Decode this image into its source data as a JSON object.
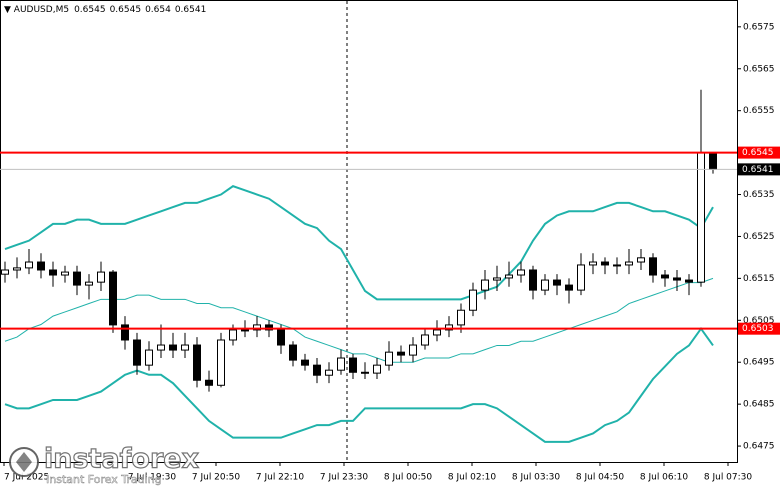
{
  "chart_data": {
    "type": "candlestick",
    "title": "AUDUSD,M5",
    "open": [
      0.6516,
      0.6517,
      0.65175,
      0.65189,
      0.6517,
      0.65158,
      0.65165,
      0.65134,
      0.65141,
      0.65165,
      0.65039,
      0.65003,
      0.64943,
      0.64979,
      0.64991,
      0.64979,
      0.64991,
      0.64907,
      0.64895,
      0.65003,
      0.65027,
      0.65027,
      0.65039,
      0.65027,
      0.64991,
      0.64955,
      0.64943,
      0.64919,
      0.64931,
      0.6496,
      0.64926,
      0.64924,
      0.64943,
      0.64974,
      0.64967,
      0.64991,
      0.65015,
      0.65027,
      0.65039,
      0.65074,
      0.65122,
      0.65146,
      0.65151,
      0.65158,
      0.6517,
      0.65122,
      0.65146,
      0.65134,
      0.65122,
      0.65182,
      0.65189,
      0.65182,
      0.65182,
      0.65189,
      0.65199,
      0.65158,
      0.65151,
      0.65146,
      0.65141,
      0.6545
    ],
    "high": [
      0.6519,
      0.652,
      0.6522,
      0.6521,
      0.6519,
      0.6518,
      0.6518,
      0.6516,
      0.6519,
      0.6517,
      0.6506,
      0.6502,
      0.65,
      0.6504,
      0.6502,
      0.6502,
      0.6501,
      0.6493,
      0.6502,
      0.6504,
      0.6505,
      0.6506,
      0.6505,
      0.6504,
      0.65,
      0.6497,
      0.6496,
      0.6495,
      0.6498,
      0.6497,
      0.6495,
      0.6496,
      0.65,
      0.6499,
      0.6501,
      0.6503,
      0.6505,
      0.6506,
      0.6509,
      0.6514,
      0.6517,
      0.6518,
      0.6519,
      0.6519,
      0.6518,
      0.6516,
      0.6516,
      0.6515,
      0.6521,
      0.6521,
      0.652,
      0.652,
      0.6522,
      0.6522,
      0.6521,
      0.6517,
      0.6517,
      0.6516,
      0.656,
      0.6545
    ],
    "low": [
      0.6514,
      0.6515,
      0.6516,
      0.6515,
      0.6513,
      0.6514,
      0.6511,
      0.651,
      0.6512,
      0.6502,
      0.6498,
      0.6492,
      0.6493,
      0.6496,
      0.6496,
      0.6496,
      0.6489,
      0.6488,
      0.6489,
      0.6499,
      0.6501,
      0.6501,
      0.6501,
      0.6497,
      0.6494,
      0.6493,
      0.649,
      0.649,
      0.6492,
      0.6491,
      0.6491,
      0.6491,
      0.6493,
      0.6495,
      0.6495,
      0.6498,
      0.65,
      0.6501,
      0.6502,
      0.6506,
      0.651,
      0.6512,
      0.6513,
      0.6514,
      0.651,
      0.6511,
      0.6511,
      0.6509,
      0.6511,
      0.6516,
      0.6516,
      0.6516,
      0.6516,
      0.6517,
      0.6514,
      0.6513,
      0.6512,
      0.6511,
      0.6513,
      0.654
    ],
    "close": [
      0.6517,
      0.65175,
      0.65189,
      0.6517,
      0.65158,
      0.65165,
      0.65134,
      0.65141,
      0.65165,
      0.65039,
      0.65003,
      0.64943,
      0.64979,
      0.64991,
      0.64979,
      0.64991,
      0.64907,
      0.64895,
      0.65003,
      0.65027,
      0.65027,
      0.65039,
      0.65027,
      0.64991,
      0.64955,
      0.64943,
      0.64919,
      0.64931,
      0.6496,
      0.64926,
      0.64924,
      0.64943,
      0.64974,
      0.64967,
      0.64991,
      0.65015,
      0.65027,
      0.65039,
      0.65074,
      0.65122,
      0.65146,
      0.65151,
      0.65158,
      0.6517,
      0.65122,
      0.65146,
      0.65134,
      0.65122,
      0.65182,
      0.65189,
      0.65182,
      0.65182,
      0.65189,
      0.65199,
      0.65158,
      0.65151,
      0.65146,
      0.65141,
      0.6545,
      0.6541
    ],
    "bull_color": "#ffffff",
    "bear_color": "#000000",
    "bands": {
      "color": "#20b2aa",
      "upper": [
        0.6522,
        0.6523,
        0.6524,
        0.6526,
        0.6528,
        0.6528,
        0.6529,
        0.6529,
        0.6528,
        0.6528,
        0.6528,
        0.6529,
        0.653,
        0.6531,
        0.6532,
        0.6533,
        0.6533,
        0.6534,
        0.6535,
        0.6537,
        0.6536,
        0.6535,
        0.6534,
        0.6532,
        0.653,
        0.6528,
        0.6527,
        0.6524,
        0.6522,
        0.6517,
        0.6512,
        0.651,
        0.651,
        0.651,
        0.651,
        0.651,
        0.651,
        0.651,
        0.651,
        0.6511,
        0.6512,
        0.6513,
        0.6516,
        0.6519,
        0.6524,
        0.6528,
        0.653,
        0.6531,
        0.6531,
        0.6531,
        0.6532,
        0.6533,
        0.6533,
        0.6532,
        0.6531,
        0.6531,
        0.653,
        0.6529,
        0.6527,
        0.6532
      ],
      "middle": [
        0.65,
        0.6501,
        0.6503,
        0.6504,
        0.6506,
        0.6507,
        0.6508,
        0.6509,
        0.651,
        0.651,
        0.651,
        0.6511,
        0.6511,
        0.651,
        0.651,
        0.651,
        0.6509,
        0.6509,
        0.6508,
        0.6508,
        0.6507,
        0.6506,
        0.6505,
        0.6504,
        0.6503,
        0.6501,
        0.65,
        0.6499,
        0.6498,
        0.6497,
        0.6497,
        0.6496,
        0.6495,
        0.6495,
        0.6495,
        0.6496,
        0.6496,
        0.6496,
        0.6497,
        0.6497,
        0.6498,
        0.6499,
        0.6499,
        0.65,
        0.65,
        0.6501,
        0.6502,
        0.6503,
        0.6504,
        0.6505,
        0.6506,
        0.6507,
        0.6509,
        0.651,
        0.6511,
        0.6512,
        0.6513,
        0.6514,
        0.6514,
        0.6515
      ],
      "lower": [
        0.6485,
        0.6484,
        0.6484,
        0.6485,
        0.6486,
        0.6486,
        0.6486,
        0.6487,
        0.6488,
        0.649,
        0.6492,
        0.6493,
        0.6492,
        0.6492,
        0.649,
        0.6487,
        0.6484,
        0.6481,
        0.6479,
        0.6477,
        0.6477,
        0.6477,
        0.6477,
        0.6477,
        0.6478,
        0.6479,
        0.648,
        0.648,
        0.6481,
        0.6481,
        0.6484,
        0.6484,
        0.6484,
        0.6484,
        0.6484,
        0.6484,
        0.6484,
        0.6484,
        0.6484,
        0.6485,
        0.6485,
        0.6484,
        0.6482,
        0.648,
        0.6478,
        0.6476,
        0.6476,
        0.6476,
        0.6477,
        0.6478,
        0.648,
        0.6481,
        0.6483,
        0.6487,
        0.6491,
        0.6494,
        0.6497,
        0.6499,
        0.6503,
        0.6499
      ]
    },
    "levels": [
      {
        "value": 0.6545,
        "color": "#ff0000"
      },
      {
        "value": 0.6503,
        "color": "#ff0000"
      }
    ],
    "ylim": [
      0.64712,
      0.65814
    ],
    "yticks": [
      0.6575,
      0.6565,
      0.6555,
      0.6545,
      0.6535,
      0.6525,
      0.6515,
      0.6505,
      0.6495,
      0.6485,
      0.6475
    ],
    "xtick_labels": [
      "7 Jul 2025",
      "7 Jul 19:30",
      "7 Jul 20:50",
      "7 Jul 22:10",
      "7 Jul 23:30",
      "8 Jul 00:50",
      "8 Jul 02:10",
      "8 Jul 03:30",
      "8 Jul 04:50",
      "8 Jul 06:10",
      "8 Jul 07:30"
    ]
  },
  "watermark": {
    "brand": "instaforex",
    "tagline": "Instant Forex Trading"
  }
}
